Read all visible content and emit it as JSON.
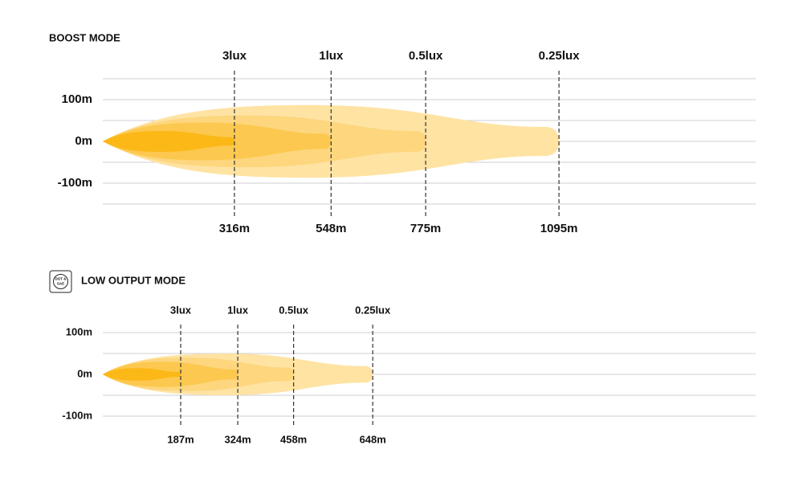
{
  "chart_data": [
    {
      "type": "beam",
      "title": "BOOST MODE",
      "categories": [
        "3lux",
        "1lux",
        "0.5lux",
        "0.25lux"
      ],
      "values": [
        316,
        548,
        775,
        1095
      ],
      "value_labels": [
        "316m",
        "548m",
        "775m",
        "1095m"
      ],
      "half_widths": [
        25,
        45,
        62,
        87
      ],
      "colors": [
        "#fbb817",
        "#fcc84f",
        "#fdd67e",
        "#fee3a3"
      ],
      "xlim": [
        0,
        1567
      ],
      "ylim": [
        -150,
        150
      ],
      "yticks": [
        {
          "value": 100,
          "label": "100m"
        },
        {
          "value": 0,
          "label": "0m"
        },
        {
          "value": -100,
          "label": "-100m"
        }
      ],
      "minor_yticks": [
        150,
        50,
        -50,
        -150
      ],
      "grid": true
    },
    {
      "type": "beam",
      "title": "LOW OUTPUT MODE",
      "badge": [
        "DOT &",
        "SAE"
      ],
      "categories": [
        "3lux",
        "1lux",
        "0.5lux",
        "0.25lux"
      ],
      "values": [
        187,
        324,
        458,
        648
      ],
      "value_labels": [
        "187m",
        "324m",
        "458m",
        "648m"
      ],
      "half_widths": [
        15,
        30,
        40,
        50
      ],
      "colors": [
        "#fbb817",
        "#fcc84f",
        "#fdd67e",
        "#fee3a3"
      ],
      "xlim": [
        0,
        1567
      ],
      "ylim": [
        -100,
        100
      ],
      "yticks": [
        {
          "value": 100,
          "label": "100m"
        },
        {
          "value": 0,
          "label": "0m"
        },
        {
          "value": -100,
          "label": "-100m"
        }
      ],
      "minor_yticks": [
        50,
        -50
      ],
      "grid": true
    }
  ]
}
